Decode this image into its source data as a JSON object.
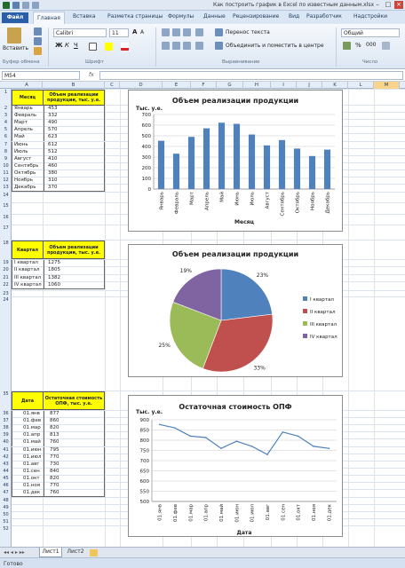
{
  "window": {
    "title": "Как построить график в Excel по известным данным.xlsx"
  },
  "tabs": [
    "Файл",
    "Главная",
    "Вставка",
    "Разметка страницы",
    "Формулы",
    "Данные",
    "Рецензирование",
    "Вид",
    "Разработчик",
    "Надстройки"
  ],
  "ribbon": {
    "paste": "Вставить",
    "font_name": "Calibri",
    "font_size": "11",
    "wrap_text": "Перенос текста",
    "merge_center": "Объединить и поместить в центре",
    "number_format": "Общий",
    "groups": {
      "clipboard": "Буфер обмена",
      "font": "Шрифт",
      "alignment": "Выравнивание",
      "number": "Число"
    }
  },
  "formula_bar": {
    "name_box": "M54",
    "fx": "fx",
    "content": ""
  },
  "columns": [
    "A",
    "B",
    "C",
    "D",
    "E",
    "F",
    "G",
    "H",
    "I",
    "J",
    "K",
    "L",
    "M"
  ],
  "table1": {
    "header_month": "Месяц",
    "header_value": "Объем реализации продукции, тыс. у.е.",
    "rows": [
      [
        "Январь",
        "453"
      ],
      [
        "Февраль",
        "332"
      ],
      [
        "Март",
        "490"
      ],
      [
        "Апрель",
        "570"
      ],
      [
        "Май",
        "623"
      ],
      [
        "Июнь",
        "612"
      ],
      [
        "Июль",
        "512"
      ],
      [
        "Август",
        "410"
      ],
      [
        "Сентябрь",
        "460"
      ],
      [
        "Октябрь",
        "380"
      ],
      [
        "Ноябрь",
        "310"
      ],
      [
        "Декабрь",
        "370"
      ]
    ]
  },
  "table2": {
    "header_quarter": "Квартал",
    "header_value": "Объем реализации продукции, тыс. у.е.",
    "rows": [
      [
        "I квартал",
        "1275"
      ],
      [
        "II квартал",
        "1805"
      ],
      [
        "III квартал",
        "1382"
      ],
      [
        "IV квартал",
        "1060"
      ]
    ]
  },
  "table3": {
    "header_date": "Дата",
    "header_value": "Остаточная стоимость ОПФ, тыс. у.е.",
    "rows": [
      [
        "01.янв",
        "877"
      ],
      [
        "01.фев",
        "860"
      ],
      [
        "01.мар",
        "820"
      ],
      [
        "01.апр",
        "813"
      ],
      [
        "01.май",
        "760"
      ],
      [
        "01.июн",
        "795"
      ],
      [
        "01.июл",
        "770"
      ],
      [
        "01.авг",
        "730"
      ],
      [
        "01.сен",
        "840"
      ],
      [
        "01.окт",
        "820"
      ],
      [
        "01.ноя",
        "770"
      ],
      [
        "01.дек",
        "760"
      ]
    ]
  },
  "chart_data": [
    {
      "type": "bar",
      "title": "Объем реализации продукции",
      "ylabel": "Тыс. у.е.",
      "xlabel": "Месяц",
      "categories": [
        "Январь",
        "Февраль",
        "Март",
        "Апрель",
        "Май",
        "Июнь",
        "Июль",
        "Август",
        "Сентябрь",
        "Октябрь",
        "Ноябрь",
        "Декабрь"
      ],
      "values": [
        453,
        332,
        490,
        570,
        623,
        612,
        512,
        410,
        460,
        380,
        310,
        370
      ],
      "ylim": [
        0,
        700
      ],
      "yticks": [
        0,
        100,
        200,
        300,
        400,
        500,
        600,
        700
      ],
      "color": "#4f81bd"
    },
    {
      "type": "pie",
      "title": "Объем реализации продукции",
      "categories": [
        "I квартал",
        "II квартал",
        "III квартал",
        "IV квартал"
      ],
      "values": [
        1275,
        1805,
        1382,
        1060
      ],
      "labels": [
        "23%",
        "33%",
        "25%",
        "19%"
      ],
      "colors": [
        "#4f81bd",
        "#c0504d",
        "#9bbb59",
        "#8064a2"
      ],
      "legend": "right"
    },
    {
      "type": "line",
      "title": "Остаточная стоимость ОПФ",
      "ylabel": "Тыс. у.е.",
      "xlabel": "Дата",
      "categories": [
        "01.янв",
        "01.фев",
        "01.мар",
        "01.апр",
        "01.май",
        "01.июн",
        "01.июл",
        "01.авг",
        "01.сен",
        "01.окт",
        "01.ноя",
        "01.дек"
      ],
      "values": [
        877,
        860,
        820,
        813,
        760,
        795,
        770,
        730,
        840,
        820,
        770,
        760
      ],
      "ylim": [
        500,
        900
      ],
      "yticks": [
        500,
        550,
        600,
        650,
        700,
        750,
        800,
        850,
        900
      ],
      "color": "#4f81bd"
    }
  ],
  "sheets": [
    "Лист1",
    "Лист2"
  ],
  "status": {
    "ready": "Готово"
  }
}
